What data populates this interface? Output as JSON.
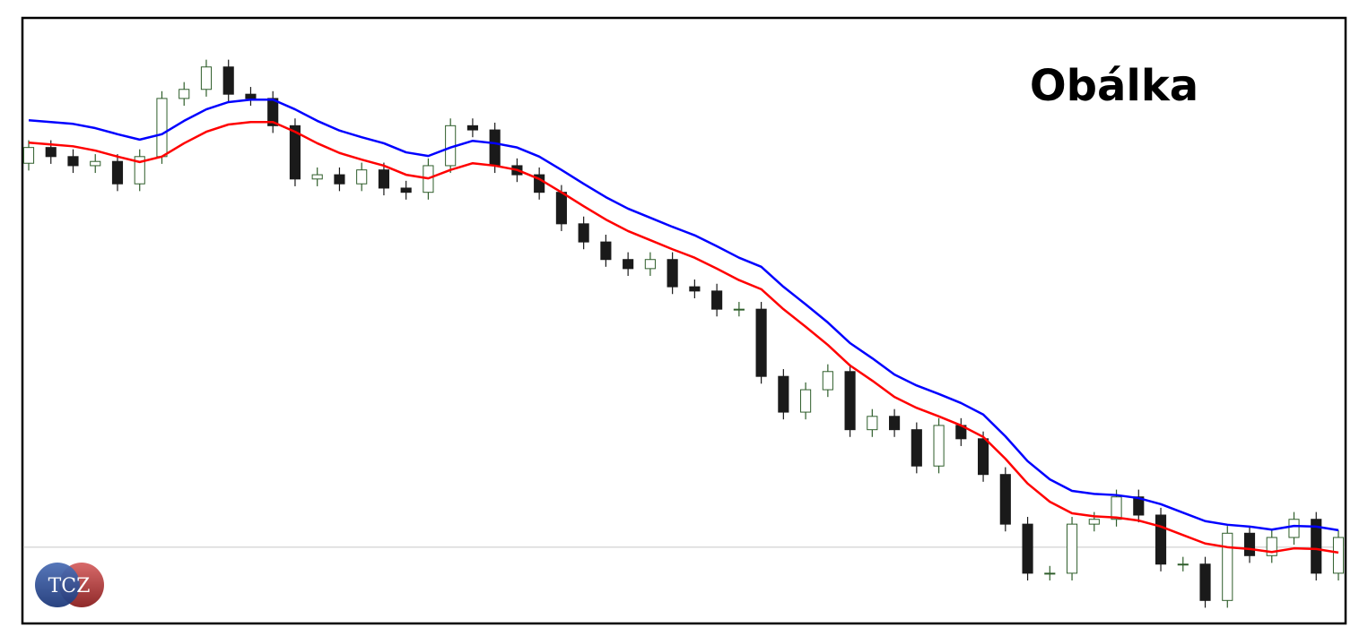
{
  "chart_data": {
    "type": "candlestick",
    "title": "Obálka",
    "ylim": [
      0,
      100
    ],
    "up_color": "#2f5e2b",
    "down_color": "#1a1a1a",
    "open": [
      76.0,
      78.6,
      77.1,
      75.6,
      76.3,
      72.6,
      77.1,
      86.7,
      88.2,
      91.9,
      87.4,
      86.7,
      82.2,
      73.4,
      74.1,
      72.6,
      74.9,
      71.9,
      71.2,
      75.6,
      82.2,
      81.5,
      75.6,
      74.1,
      71.2,
      66.0,
      63.0,
      60.1,
      58.6,
      60.1,
      55.6,
      54.9,
      51.9,
      51.9,
      40.8,
      34.9,
      38.6,
      41.6,
      32.0,
      34.2,
      32.0,
      26.0,
      32.7,
      30.5,
      24.6,
      16.4,
      8.3,
      8.3,
      16.4,
      17.2,
      20.9,
      17.9,
      9.8,
      9.8,
      3.8,
      14.9,
      11.2,
      14.2,
      17.2,
      8.3
    ],
    "high": [
      79.8,
      79.8,
      78.3,
      77.5,
      77.5,
      78.3,
      87.9,
      89.4,
      93.1,
      93.1,
      88.6,
      87.9,
      83.4,
      75.3,
      75.3,
      76.1,
      76.1,
      73.1,
      76.8,
      83.4,
      83.4,
      82.7,
      76.8,
      75.3,
      72.4,
      67.2,
      64.2,
      61.3,
      61.3,
      61.3,
      56.8,
      56.1,
      53.1,
      53.1,
      42.0,
      39.8,
      42.8,
      42.8,
      35.4,
      35.4,
      33.2,
      33.9,
      33.9,
      31.7,
      25.8,
      17.6,
      9.5,
      17.6,
      18.4,
      22.1,
      22.1,
      19.1,
      11.0,
      11.0,
      16.1,
      16.1,
      15.4,
      18.4,
      18.4,
      15.4
    ],
    "low": [
      74.8,
      75.9,
      74.4,
      74.4,
      71.4,
      71.4,
      75.9,
      85.5,
      87.0,
      86.2,
      85.5,
      81.0,
      72.2,
      72.2,
      71.4,
      71.4,
      70.7,
      70.0,
      70.0,
      74.4,
      80.3,
      74.4,
      72.9,
      70.0,
      64.8,
      61.8,
      58.9,
      57.4,
      57.4,
      54.4,
      53.7,
      50.7,
      50.7,
      39.6,
      33.7,
      33.7,
      37.4,
      30.8,
      30.8,
      30.8,
      24.8,
      24.8,
      29.3,
      23.4,
      15.2,
      7.1,
      7.1,
      7.1,
      15.2,
      16.0,
      16.7,
      8.6,
      8.6,
      2.6,
      2.6,
      10.0,
      10.0,
      13.0,
      7.1,
      7.1
    ],
    "close": [
      78.6,
      77.1,
      75.6,
      76.3,
      72.6,
      77.1,
      86.7,
      88.2,
      91.9,
      87.4,
      86.7,
      82.2,
      73.4,
      74.1,
      72.6,
      74.9,
      71.9,
      71.2,
      75.6,
      82.2,
      81.5,
      75.6,
      74.1,
      71.2,
      66.0,
      63.0,
      60.1,
      58.6,
      60.1,
      55.6,
      54.9,
      51.9,
      51.9,
      40.8,
      34.9,
      38.6,
      41.6,
      32.0,
      34.2,
      32.0,
      26.0,
      32.7,
      30.5,
      24.6,
      16.4,
      8.3,
      8.3,
      16.4,
      17.2,
      20.9,
      17.9,
      9.8,
      9.8,
      3.8,
      14.9,
      11.2,
      14.2,
      17.2,
      8.3,
      14.2
    ],
    "envelopes": [
      {
        "color": "#0000ff",
        "values": [
          83.1,
          82.8,
          82.5,
          81.8,
          80.8,
          79.9,
          80.8,
          83.0,
          84.9,
          86.1,
          86.5,
          86.5,
          84.9,
          83.0,
          81.4,
          80.3,
          79.3,
          77.8,
          77.2,
          78.6,
          79.7,
          79.3,
          78.6,
          77.1,
          74.9,
          72.6,
          70.4,
          68.5,
          67.0,
          65.5,
          64.1,
          62.3,
          60.4,
          58.9,
          55.6,
          52.7,
          49.7,
          46.3,
          43.8,
          41.1,
          39.3,
          37.9,
          36.4,
          34.5,
          30.9,
          26.8,
          23.8,
          21.9,
          21.4,
          21.2,
          20.7,
          19.7,
          18.3,
          16.9,
          16.3,
          16.0,
          15.5,
          16.1,
          16.0,
          15.4
        ]
      },
      {
        "color": "#ff0000",
        "values": [
          79.4,
          79.1,
          78.8,
          78.1,
          77.1,
          76.2,
          77.1,
          79.3,
          81.2,
          82.4,
          82.8,
          82.8,
          81.2,
          79.3,
          77.7,
          76.6,
          75.6,
          74.1,
          73.5,
          74.9,
          76.0,
          75.6,
          74.9,
          73.4,
          71.2,
          68.9,
          66.7,
          64.8,
          63.3,
          61.8,
          60.4,
          58.6,
          56.7,
          55.2,
          51.9,
          49.0,
          46.0,
          42.6,
          40.1,
          37.4,
          35.6,
          34.2,
          32.7,
          30.8,
          27.2,
          23.1,
          20.1,
          18.2,
          17.7,
          17.5,
          17.0,
          16.0,
          14.6,
          13.2,
          12.6,
          12.3,
          11.8,
          12.4,
          12.3,
          11.7
        ]
      }
    ],
    "price_line": 12.6,
    "price_line_color": "#c8c8c8"
  },
  "logo": {
    "text": "TCZ"
  }
}
